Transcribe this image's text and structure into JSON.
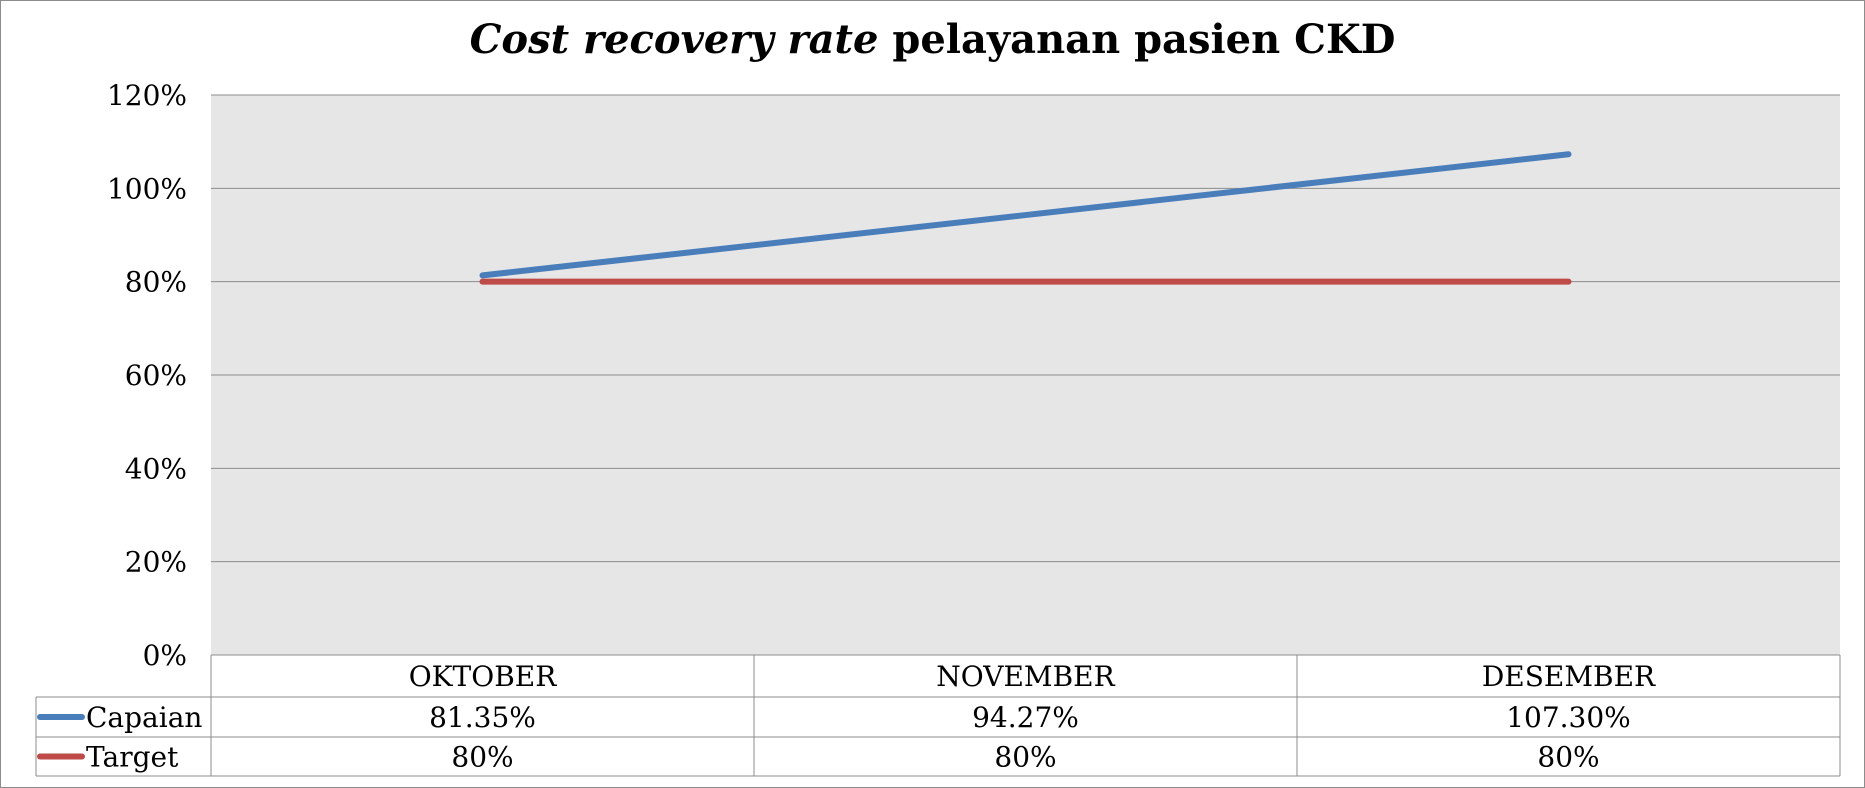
{
  "title": {
    "italic_part": "Cost recovery rate",
    "normal_part": "pelayanan pasien CKD"
  },
  "colors": {
    "capaian": "#4a7ebb",
    "target": "#be4b48",
    "plot_bg": "#e6e6e6",
    "grid": "#8c8c8c"
  },
  "chart_data": {
    "type": "line",
    "title": "Cost recovery rate pelayanan pasien CKD",
    "categories": [
      "OKTOBER",
      "NOVEMBER",
      "DESEMBER"
    ],
    "series": [
      {
        "name": "Capaian",
        "values": [
          81.35,
          94.27,
          107.3
        ],
        "labels": [
          "81.35%",
          "94.27%",
          "107.30%"
        ]
      },
      {
        "name": "Target",
        "values": [
          80,
          80,
          80
        ],
        "labels": [
          "80%",
          "80%",
          "80%"
        ]
      }
    ],
    "ylim": [
      0,
      120
    ],
    "yticks": [
      "0%",
      "20%",
      "40%",
      "60%",
      "80%",
      "100%",
      "120%"
    ],
    "grid": true,
    "legend": "data-table"
  }
}
